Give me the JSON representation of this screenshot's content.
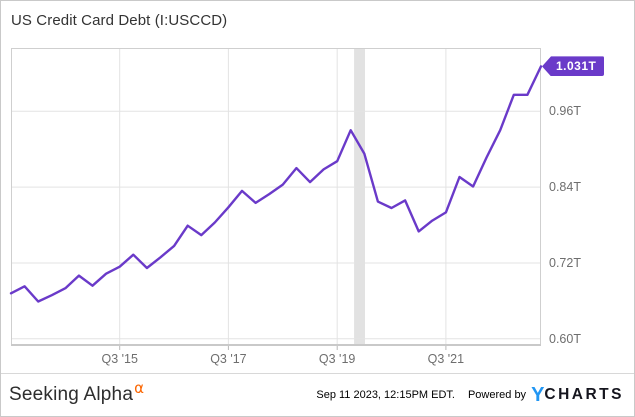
{
  "header": {
    "title": "US Credit Card Debt (I:USCCD)"
  },
  "chart_data": {
    "type": "line",
    "title": "US Credit Card Debt (I:USCCD)",
    "ylabel": "",
    "xlabel": "",
    "unit": "trillions of USD",
    "categories": [
      "Q3 '13",
      "Q4 '13",
      "Q1 '14",
      "Q2 '14",
      "Q3 '14",
      "Q4 '14",
      "Q1 '15",
      "Q2 '15",
      "Q3 '15",
      "Q4 '15",
      "Q1 '16",
      "Q2 '16",
      "Q3 '16",
      "Q4 '16",
      "Q1 '17",
      "Q2 '17",
      "Q3 '17",
      "Q4 '17",
      "Q1 '18",
      "Q2 '18",
      "Q3 '18",
      "Q4 '18",
      "Q1 '19",
      "Q2 '19",
      "Q3 '19",
      "Q4 '19",
      "Q1 '20",
      "Q2 '20",
      "Q3 '20",
      "Q4 '20",
      "Q1 '21",
      "Q2 '21",
      "Q3 '21",
      "Q4 '21",
      "Q1 '22",
      "Q2 '22",
      "Q3 '22",
      "Q4 '22",
      "Q1 '23",
      "Q2 '23"
    ],
    "values": [
      0.672,
      0.683,
      0.659,
      0.669,
      0.68,
      0.7,
      0.684,
      0.703,
      0.714,
      0.733,
      0.712,
      0.729,
      0.747,
      0.779,
      0.764,
      0.784,
      0.808,
      0.834,
      0.815,
      0.829,
      0.844,
      0.87,
      0.848,
      0.868,
      0.881,
      0.93,
      0.893,
      0.817,
      0.807,
      0.819,
      0.77,
      0.787,
      0.8,
      0.856,
      0.841,
      0.887,
      0.93,
      0.986,
      0.986,
      1.031
    ],
    "last_value": 1.031,
    "last_value_label": "1.031T",
    "y_ticks": [
      {
        "value": 0.6,
        "label": "0.60T"
      },
      {
        "value": 0.72,
        "label": "0.72T"
      },
      {
        "value": 0.84,
        "label": "0.84T"
      },
      {
        "value": 0.96,
        "label": "0.96T"
      }
    ],
    "x_ticks": [
      {
        "index": 8,
        "label": "Q3 '15"
      },
      {
        "index": 16,
        "label": "Q3 '17"
      },
      {
        "index": 24,
        "label": "Q3 '19"
      },
      {
        "index": 32,
        "label": "Q3 '21"
      }
    ],
    "ylim": [
      0.5886,
      1.0601
    ],
    "grid": true,
    "legend": "none",
    "y_axis_side": "right",
    "line_color": "#6A3AC9",
    "recession_band": {
      "start_index": 25.25,
      "end_index": 26.05,
      "color": "#e2e2e2"
    }
  },
  "footer": {
    "brand": "Seeking Alpha",
    "brand_alpha": "α",
    "timestamp": "Sep 11 2023, 12:15PM EDT.",
    "powered_by": "Powered by",
    "ycharts_y": "Y",
    "ycharts_rest": "CHARTS"
  },
  "colors": {
    "accent_purple": "#6A3AC9",
    "alpha_orange": "#FB6602",
    "ycharts_blue": "#2196F3",
    "gridline": "#e3e3e3",
    "axis_text": "#6e6e6e"
  }
}
